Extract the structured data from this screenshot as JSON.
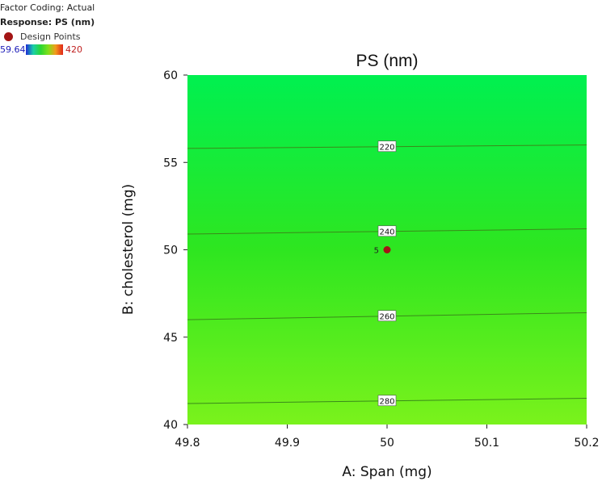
{
  "legend": {
    "factor_coding": "Factor Coding: Actual",
    "response": "Response: PS (nm)",
    "design_points_label": "Design Points",
    "scale_min": "59.64",
    "scale_max": "420"
  },
  "colors": {
    "design_point": "#a31515",
    "contour_line": "#3a8a1a",
    "scale_min_text": "#1a1ab8",
    "scale_max_text": "#c02020"
  },
  "chart_data": {
    "type": "heatmap",
    "title": "PS (nm)",
    "xlabel": "A: Span (mg)",
    "ylabel": "B: cholesterol (mg)",
    "xlim": [
      49.8,
      50.2
    ],
    "ylim": [
      40,
      60
    ],
    "x_ticks": [
      "49.8",
      "49.9",
      "50",
      "50.1",
      "50.2"
    ],
    "y_ticks": [
      "40",
      "45",
      "50",
      "55",
      "60"
    ],
    "color_scale": {
      "min": 59.64,
      "max": 420
    },
    "contours": [
      {
        "level": "220",
        "y_left": 55.8,
        "y_right": 56.0
      },
      {
        "level": "240",
        "y_left": 50.9,
        "y_right": 51.2
      },
      {
        "level": "260",
        "y_left": 46.0,
        "y_right": 46.4
      },
      {
        "level": "280",
        "y_left": 41.2,
        "y_right": 41.5
      }
    ],
    "design_points": [
      {
        "x": 50,
        "y": 50,
        "label": "5"
      }
    ],
    "grid": false,
    "legend_position": "top-left"
  }
}
